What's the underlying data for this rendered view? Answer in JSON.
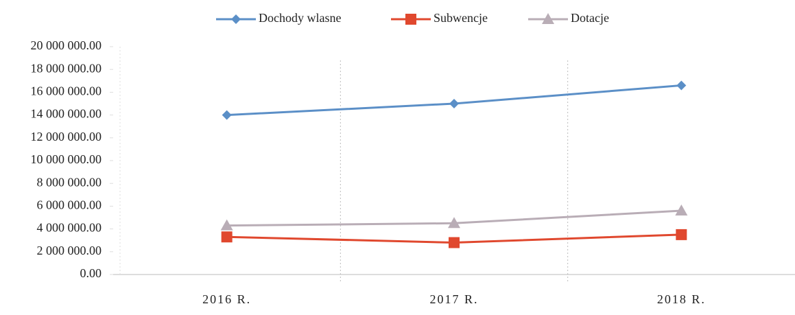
{
  "chart_data": {
    "type": "line",
    "categories": [
      "2016 R.",
      "2017 R.",
      "2018 R."
    ],
    "series": [
      {
        "name": "Dochody wlasne",
        "color": "#5b8fc7",
        "marker": "diamond",
        "values": [
          14000000,
          15000000,
          16600000
        ]
      },
      {
        "name": "Subwencje",
        "color": "#e0482e",
        "marker": "square",
        "values": [
          3300000,
          2800000,
          3500000
        ]
      },
      {
        "name": "Dotacje",
        "color": "#b9adb6",
        "marker": "triangle",
        "values": [
          4300000,
          4500000,
          5600000
        ]
      }
    ],
    "ylim": [
      0,
      20000000
    ],
    "yticks": [
      {
        "value": 0,
        "label": "0.00"
      },
      {
        "value": 2000000,
        "label": "2 000 000.00"
      },
      {
        "value": 4000000,
        "label": "4 000 000.00"
      },
      {
        "value": 6000000,
        "label": "6 000 000.00"
      },
      {
        "value": 8000000,
        "label": "8 000 000.00"
      },
      {
        "value": 10000000,
        "label": "10 000 000.00"
      },
      {
        "value": 12000000,
        "label": "12 000 000.00"
      },
      {
        "value": 14000000,
        "label": "14 000 000.00"
      },
      {
        "value": 16000000,
        "label": "16 000 000.00"
      },
      {
        "value": 18000000,
        "label": "18 000 000.00"
      },
      {
        "value": 20000000,
        "label": "20 000 000.00"
      }
    ],
    "legend": "top"
  }
}
